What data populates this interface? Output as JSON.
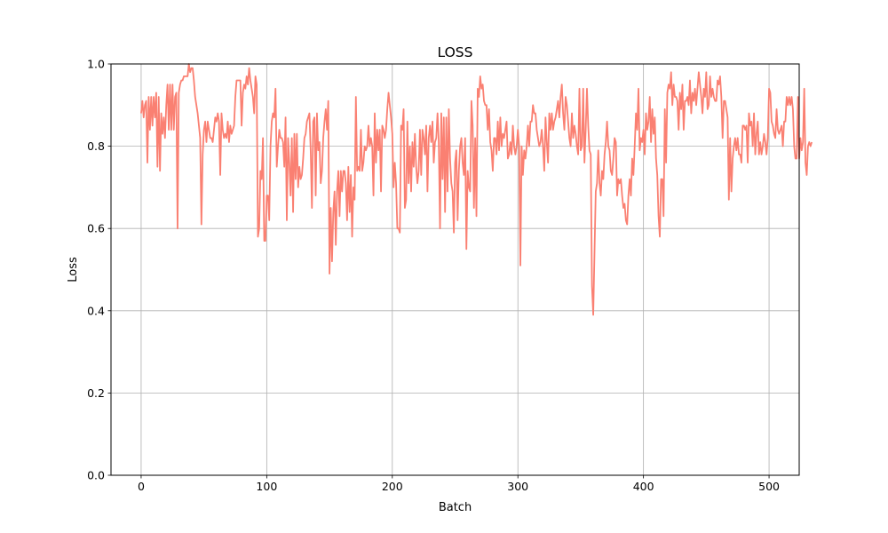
{
  "chart_data": {
    "type": "line",
    "title": "LOSS",
    "xlabel": "Batch",
    "ylabel": "Loss",
    "xlim": [
      -24,
      524
    ],
    "ylim": [
      0,
      1
    ],
    "grid": true,
    "xticks": [
      0,
      100,
      200,
      300,
      400,
      500
    ],
    "yticks": [
      0.0,
      0.2,
      0.4,
      0.6,
      0.8,
      1.0
    ],
    "xtick_labels": [
      "0",
      "100",
      "200",
      "300",
      "400",
      "500"
    ],
    "ytick_labels": [
      "0.0",
      "0.2",
      "0.4",
      "0.6",
      "0.8",
      "1.0"
    ],
    "series": [
      {
        "color": "#fa8072",
        "x_start": 0,
        "x_step": 1,
        "values": [
          0.88,
          0.91,
          0.87,
          0.9,
          0.91,
          0.76,
          0.92,
          0.84,
          0.92,
          0.85,
          0.92,
          0.87,
          0.93,
          0.75,
          0.92,
          0.74,
          0.88,
          0.83,
          0.87,
          0.82,
          0.9,
          0.95,
          0.84,
          0.95,
          0.84,
          0.95,
          0.84,
          0.92,
          0.93,
          0.6,
          0.93,
          0.95,
          0.96,
          0.96,
          0.97,
          0.97,
          0.97,
          0.97,
          1.0,
          0.98,
          0.99,
          0.99,
          0.96,
          0.92,
          0.9,
          0.88,
          0.85,
          0.82,
          0.61,
          0.78,
          0.84,
          0.86,
          0.81,
          0.86,
          0.84,
          0.82,
          0.82,
          0.81,
          0.84,
          0.87,
          0.86,
          0.88,
          0.86,
          0.73,
          0.88,
          0.84,
          0.82,
          0.83,
          0.82,
          0.86,
          0.81,
          0.85,
          0.83,
          0.84,
          0.85,
          0.92,
          0.96,
          0.96,
          0.96,
          0.96,
          0.85,
          0.93,
          0.95,
          0.94,
          0.97,
          0.95,
          0.99,
          0.96,
          0.94,
          0.92,
          0.88,
          0.97,
          0.95,
          0.58,
          0.6,
          0.74,
          0.72,
          0.82,
          0.57,
          0.57,
          0.68,
          0.68,
          0.62,
          0.8,
          0.86,
          0.88,
          0.87,
          0.94,
          0.75,
          0.8,
          0.84,
          0.82,
          0.82,
          0.81,
          0.75,
          0.87,
          0.62,
          0.82,
          0.76,
          0.68,
          0.82,
          0.64,
          0.83,
          0.72,
          0.83,
          0.7,
          0.75,
          0.72,
          0.73,
          0.77,
          0.82,
          0.83,
          0.86,
          0.87,
          0.88,
          0.79,
          0.65,
          0.86,
          0.87,
          0.68,
          0.88,
          0.79,
          0.81,
          0.71,
          0.74,
          0.82,
          0.86,
          0.89,
          0.84,
          0.91,
          0.49,
          0.65,
          0.52,
          0.64,
          0.69,
          0.56,
          0.69,
          0.74,
          0.63,
          0.74,
          0.69,
          0.74,
          0.74,
          0.71,
          0.62,
          0.75,
          0.64,
          0.73,
          0.58,
          0.7,
          0.67,
          0.92,
          0.74,
          0.75,
          0.74,
          0.84,
          0.74,
          0.76,
          0.8,
          0.79,
          0.8,
          0.85,
          0.8,
          0.82,
          0.8,
          0.68,
          0.88,
          0.76,
          0.84,
          0.79,
          0.84,
          0.69,
          0.85,
          0.84,
          0.82,
          0.84,
          0.89,
          0.93,
          0.9,
          0.87,
          0.83,
          0.7,
          0.76,
          0.71,
          0.6,
          0.6,
          0.59,
          0.85,
          0.84,
          0.89,
          0.65,
          0.67,
          0.86,
          0.71,
          0.8,
          0.69,
          0.81,
          0.75,
          0.83,
          0.75,
          0.71,
          0.74,
          0.84,
          0.73,
          0.84,
          0.82,
          0.78,
          0.85,
          0.69,
          0.82,
          0.85,
          0.81,
          0.86,
          0.76,
          0.81,
          0.82,
          0.88,
          0.81,
          0.6,
          0.88,
          0.72,
          0.87,
          0.64,
          0.87,
          0.69,
          0.89,
          0.77,
          0.71,
          0.69,
          0.59,
          0.76,
          0.79,
          0.62,
          0.74,
          0.8,
          0.82,
          0.76,
          0.73,
          0.82,
          0.55,
          0.74,
          0.7,
          0.69,
          0.91,
          0.85,
          0.65,
          0.82,
          0.63,
          0.94,
          0.92,
          0.97,
          0.94,
          0.95,
          0.91,
          0.9,
          0.9,
          0.84,
          0.89,
          0.81,
          0.79,
          0.74,
          0.82,
          0.82,
          0.78,
          0.86,
          0.79,
          0.87,
          0.8,
          0.83,
          0.82,
          0.84,
          0.86,
          0.77,
          0.78,
          0.81,
          0.78,
          0.85,
          0.8,
          0.78,
          0.8,
          0.84,
          0.8,
          0.51,
          0.8,
          0.73,
          0.79,
          0.77,
          0.8,
          0.85,
          0.8,
          0.86,
          0.86,
          0.9,
          0.88,
          0.88,
          0.84,
          0.82,
          0.8,
          0.81,
          0.84,
          0.8,
          0.74,
          0.87,
          0.81,
          0.76,
          0.88,
          0.84,
          0.88,
          0.84,
          0.86,
          0.87,
          0.89,
          0.91,
          0.87,
          0.92,
          0.95,
          0.88,
          0.84,
          0.92,
          0.9,
          0.86,
          0.82,
          0.8,
          0.88,
          0.82,
          0.85,
          0.83,
          0.8,
          0.78,
          0.94,
          0.79,
          0.8,
          0.94,
          0.76,
          0.84,
          0.94,
          0.85,
          0.79,
          0.78,
          0.46,
          0.39,
          0.54,
          0.69,
          0.71,
          0.79,
          0.71,
          0.68,
          0.74,
          0.72,
          0.78,
          0.81,
          0.86,
          0.8,
          0.79,
          0.74,
          0.73,
          0.77,
          0.82,
          0.81,
          0.68,
          0.72,
          0.71,
          0.72,
          0.68,
          0.65,
          0.66,
          0.62,
          0.61,
          0.68,
          0.72,
          0.68,
          0.77,
          0.73,
          0.8,
          0.88,
          0.84,
          0.94,
          0.79,
          0.82,
          0.81,
          0.84,
          0.78,
          0.88,
          0.84,
          0.86,
          0.92,
          0.81,
          0.89,
          0.83,
          0.87,
          0.77,
          0.73,
          0.63,
          0.58,
          0.72,
          0.72,
          0.63,
          0.89,
          0.76,
          0.93,
          0.95,
          0.94,
          0.98,
          0.9,
          0.95,
          0.92,
          0.92,
          0.91,
          0.84,
          0.93,
          0.89,
          0.95,
          0.84,
          0.91,
          0.91,
          0.92,
          0.9,
          0.96,
          0.88,
          0.93,
          0.91,
          0.94,
          0.9,
          0.94,
          0.98,
          0.95,
          0.92,
          0.88,
          0.94,
          0.92,
          0.98,
          0.89,
          0.9,
          0.97,
          0.92,
          0.94,
          0.92,
          0.91,
          0.91,
          0.96,
          0.95,
          0.97,
          0.92,
          0.82,
          0.91,
          0.91,
          0.89,
          0.87,
          0.67,
          0.82,
          0.69,
          0.77,
          0.8,
          0.82,
          0.79,
          0.82,
          0.78,
          0.78,
          0.76,
          0.85,
          0.85,
          0.84,
          0.85,
          0.76,
          0.88,
          0.85,
          0.86,
          0.8,
          0.88,
          0.78,
          0.83,
          0.86,
          0.78,
          0.81,
          0.78,
          0.8,
          0.83,
          0.81,
          0.78,
          0.82,
          0.94,
          0.93,
          0.86,
          0.85,
          0.83,
          0.82,
          0.89,
          0.84,
          0.83,
          0.84,
          0.85,
          0.8,
          0.86,
          0.86,
          0.92,
          0.9,
          0.92,
          0.9,
          0.92,
          0.89,
          0.8,
          0.77,
          0.77,
          0.92,
          0.77,
          0.82,
          0.79,
          0.81,
          0.94,
          0.76,
          0.73,
          0.8,
          0.81,
          0.8,
          0.81
        ]
      }
    ]
  }
}
